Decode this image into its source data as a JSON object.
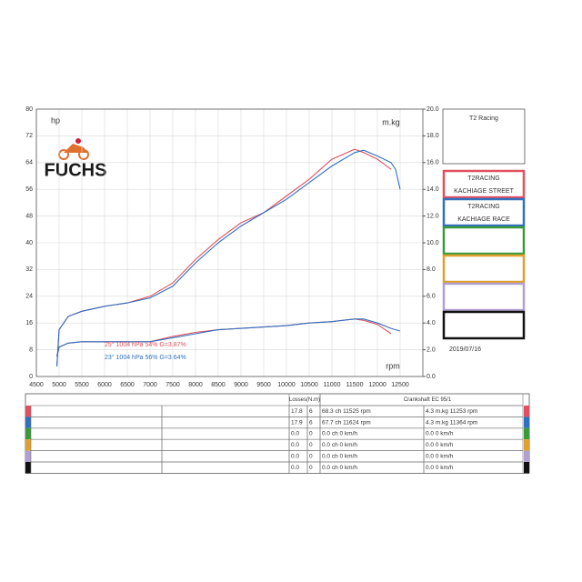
{
  "chart_data": {
    "type": "line",
    "logo": "FUCHS",
    "x_label": "rpm",
    "y_label": "hp",
    "y2_label": "m.kg",
    "xlim": [
      4500,
      13000
    ],
    "xticks": [
      4500,
      5000,
      5500,
      6000,
      6500,
      7000,
      7500,
      8000,
      8500,
      9000,
      9500,
      10000,
      10500,
      11000,
      11500,
      12000,
      12500
    ],
    "ylim": [
      0,
      80
    ],
    "yticks": [
      0,
      8,
      16,
      24,
      32,
      40,
      48,
      56,
      64,
      72,
      80
    ],
    "y2lim": [
      0,
      20
    ],
    "y2ticks": [
      {
        "value": 0,
        "label": "0.0"
      },
      {
        "value": 2,
        "label": "2.0"
      },
      {
        "value": 4,
        "label": "4.0"
      },
      {
        "value": 6,
        "label": "6.0"
      },
      {
        "value": 8,
        "label": "8.0"
      },
      {
        "value": 10,
        "label": "10.0"
      },
      {
        "value": 12,
        "label": "12.0"
      },
      {
        "value": 14,
        "label": "14.0"
      },
      {
        "value": 16,
        "label": "16.0"
      },
      {
        "value": 18,
        "label": "18.0"
      },
      {
        "value": 20,
        "label": "20.0"
      }
    ],
    "grid": true,
    "x": [
      4950,
      5000,
      5200,
      5500,
      6000,
      6500,
      7000,
      7500,
      8000,
      8500,
      9000,
      9500,
      10000,
      10500,
      11000,
      11500,
      11700,
      12000,
      12300,
      12400,
      12500
    ],
    "series": [
      {
        "color": "#e05060",
        "values": [
          3,
          14,
          18,
          19.5,
          21,
          22,
          24,
          28,
          35,
          41,
          46,
          49,
          54,
          59,
          65,
          68,
          67,
          65,
          62,
          null,
          null
        ]
      },
      {
        "color": "#3070c0",
        "values": [
          3,
          14,
          18,
          19.5,
          21,
          22,
          23.5,
          27,
          34,
          40,
          45,
          49,
          53,
          58,
          63,
          67,
          67.7,
          66,
          64,
          62,
          56
        ]
      },
      {
        "color": "#e05060",
        "axis": "y2",
        "values": [
          1.5,
          2.2,
          2.5,
          2.6,
          2.6,
          2.6,
          2.6,
          3.0,
          3.3,
          3.5,
          3.6,
          3.7,
          3.8,
          4.0,
          4.1,
          4.3,
          4.2,
          3.9,
          3.2,
          null,
          null
        ]
      },
      {
        "color": "#3070c0",
        "axis": "y2",
        "values": [
          1.5,
          2.2,
          2.5,
          2.6,
          2.6,
          2.6,
          2.6,
          2.9,
          3.2,
          3.5,
          3.6,
          3.7,
          3.8,
          4.0,
          4.1,
          4.3,
          4.3,
          4.0,
          3.6,
          3.5,
          3.4
        ]
      }
    ],
    "annotations": [
      {
        "text": "25° 1004 hPa 54% G=3.87%",
        "color": "#e05060"
      },
      {
        "text": "23° 1004 hPa 56% G=3.64%",
        "color": "#3070c0"
      }
    ]
  },
  "panel": {
    "title": "T2 Racing",
    "entries": [
      {
        "color": "#e05060",
        "lines": [
          "T2RACING",
          "KACHIAGE STREET"
        ]
      },
      {
        "color": "#3070c0",
        "lines": [
          "T2RACING",
          "KACHIAGE RACE"
        ]
      },
      {
        "color": "#3a9a3a"
      },
      {
        "color": "#e0a030"
      },
      {
        "color": "#b0a0d0"
      },
      {
        "color": "#111111"
      }
    ],
    "date": "2019/07/16"
  },
  "table": {
    "header": [
      "Losses(N.m)",
      "Crankshaft EC 95/1"
    ],
    "rows": [
      [
        "17.8",
        "6",
        "68.3 ch 11525 rpm",
        "4.3 m.kg 11253 rpm"
      ],
      [
        "17.9",
        "6",
        "67.7 ch 11624 rpm",
        "4.3 m.kg 11364 rpm"
      ],
      [
        "0.0",
        "0",
        "0.0 ch 0 km/h",
        "0.0  0 km/h"
      ],
      [
        "0.0",
        "0",
        "0.0 ch 0 km/h",
        "0.0  0 km/h"
      ],
      [
        "0.0",
        "0",
        "0.0 ch 0 km/h",
        "0.0  0 km/h"
      ],
      [
        "0.0",
        "0",
        "0.0 ch 0 km/h",
        "0.0  0 km/h"
      ]
    ],
    "row_colors": [
      "#e05060",
      "#3070c0",
      "#3a9a3a",
      "#e0a030",
      "#b0a0d0",
      "#111111"
    ]
  }
}
